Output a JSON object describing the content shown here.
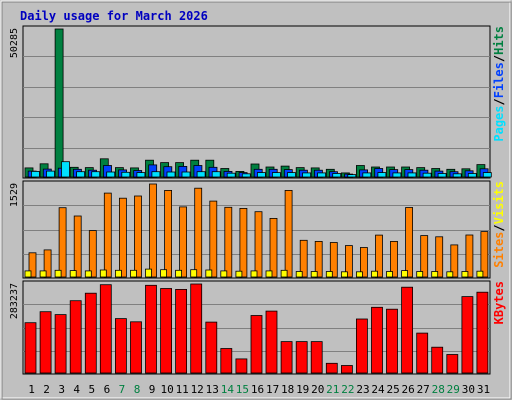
{
  "chart_data": [
    {
      "type": "bar",
      "title": "Daily usage for March 2026",
      "ymax_label": "50285",
      "ylim": [
        0,
        50285
      ],
      "categories": [
        "1",
        "2",
        "3",
        "4",
        "5",
        "6",
        "7",
        "8",
        "9",
        "10",
        "11",
        "12",
        "13",
        "14",
        "15",
        "16",
        "17",
        "18",
        "19",
        "20",
        "21",
        "22",
        "23",
        "24",
        "25",
        "26",
        "27",
        "28",
        "29",
        "30",
        "31"
      ],
      "weekend_days": [
        7,
        8,
        14,
        15,
        21,
        22,
        28,
        29
      ],
      "series": [
        {
          "name": "Hits",
          "color": "#008040",
          "values": [
            3100,
            4500,
            50285,
            3300,
            3200,
            6200,
            3200,
            3100,
            5700,
            4900,
            4900,
            5700,
            5700,
            2900,
            1900,
            4400,
            3400,
            3700,
            3200,
            3100,
            2600,
            1400,
            3900,
            3400,
            3400,
            3400,
            3200,
            2900,
            2600,
            2800,
            4200
          ]
        },
        {
          "name": "Files",
          "color": "#0040ff",
          "values": [
            2000,
            2700,
            3000,
            2600,
            2300,
            3900,
            2400,
            2200,
            4100,
            3500,
            3600,
            3900,
            3300,
            1900,
            1500,
            2600,
            2600,
            2500,
            2300,
            2300,
            1800,
            1000,
            2400,
            2900,
            2500,
            2500,
            2300,
            2000,
            1800,
            2100,
            2800
          ]
        },
        {
          "name": "Pages",
          "color": "#00e0ff",
          "values": [
            1900,
            2000,
            5200,
            1800,
            1800,
            1700,
            1600,
            1500,
            1800,
            1700,
            1700,
            1800,
            1800,
            1300,
            1100,
            1500,
            1500,
            1500,
            1400,
            1400,
            1200,
            800,
            1400,
            1500,
            1400,
            1400,
            1300,
            1200,
            1100,
            1200,
            1500
          ]
        }
      ],
      "legend": {
        "parts": [
          "Pages",
          "/",
          "Files",
          "/",
          "Hits"
        ],
        "colors": [
          "#00e0ff",
          "#000000",
          "#0040ff",
          "#000000",
          "#008040"
        ]
      }
    },
    {
      "type": "bar",
      "ymax_label": "1529",
      "ylim": [
        0,
        1529
      ],
      "series": [
        {
          "name": "Sites",
          "color": "#ff8000",
          "values": [
            398,
            445,
            1140,
            1003,
            763,
            1380,
            1296,
            1331,
            1529,
            1423,
            1152,
            1460,
            1248,
            1146,
            1128,
            1074,
            963,
            1424,
            603,
            586,
            567,
            516,
            485,
            689,
            585,
            1143,
            680,
            661,
            527,
            690,
            747
          ]
        },
        {
          "name": "Visits",
          "color": "#ffff00",
          "values": [
            100,
            100,
            110,
            105,
            100,
            115,
            110,
            110,
            130,
            120,
            110,
            120,
            115,
            100,
            95,
            100,
            100,
            110,
            90,
            90,
            90,
            85,
            85,
            95,
            90,
            105,
            90,
            90,
            85,
            90,
            95
          ]
        }
      ],
      "legend": {
        "parts": [
          "Sites",
          "/",
          "Visits"
        ],
        "colors": [
          "#ff8000",
          "#000000",
          "#ffff00"
        ]
      }
    },
    {
      "type": "bar",
      "ymax_label": "283237",
      "ylim": [
        0,
        283237
      ],
      "series": [
        {
          "name": "KBytes",
          "color": "#ff0000",
          "values": [
            160000,
            195000,
            186000,
            230000,
            254000,
            281000,
            173000,
            163000,
            279000,
            269000,
            266000,
            283237,
            162000,
            78000,
            45000,
            183000,
            197000,
            100000,
            100000,
            100000,
            31000,
            24000,
            172000,
            209000,
            203000,
            273000,
            127000,
            82000,
            59000,
            243000,
            257000
          ]
        }
      ],
      "legend": {
        "parts": [
          "KBytes"
        ],
        "colors": [
          "#ff0000"
        ]
      }
    }
  ]
}
